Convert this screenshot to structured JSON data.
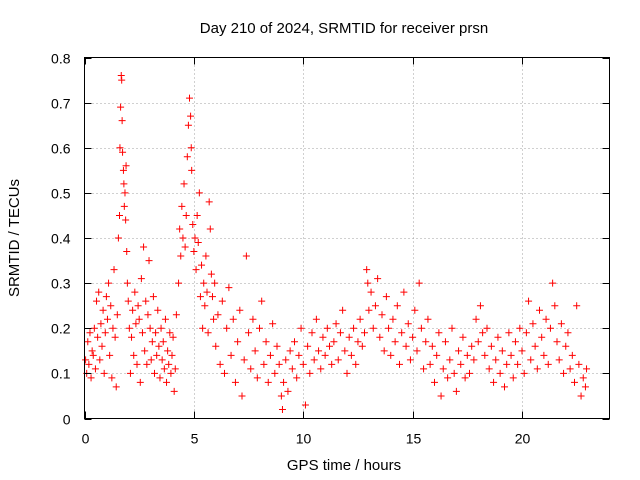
{
  "chart_data": {
    "type": "scatter",
    "title": "Day 210 of 2024, SRMTID for receiver prsn",
    "xlabel": "GPS time / hours",
    "ylabel": "SRMTID / TECUs",
    "xlim": [
      0,
      24
    ],
    "ylim": [
      0,
      0.8
    ],
    "xticks": [
      0,
      5,
      10,
      15,
      20
    ],
    "xtick_labels": [
      "0",
      "5",
      "10",
      "15",
      "20"
    ],
    "yticks": [
      0,
      0.1,
      0.2,
      0.3,
      0.4,
      0.5,
      0.6,
      0.7,
      0.8
    ],
    "ytick_labels": [
      "0",
      "0.1",
      "0.2",
      "0.3",
      "0.4",
      "0.5",
      "0.6",
      "0.7",
      "0.8"
    ],
    "grid": true,
    "marker": "+",
    "color": "#ff0000",
    "series": [
      {
        "name": "prsn",
        "points": [
          [
            0.05,
            0.13
          ],
          [
            0.1,
            0.1
          ],
          [
            0.15,
            0.17
          ],
          [
            0.2,
            0.12
          ],
          [
            0.25,
            0.19
          ],
          [
            0.3,
            0.09
          ],
          [
            0.35,
            0.15
          ],
          [
            0.4,
            0.14
          ],
          [
            0.45,
            0.2
          ],
          [
            0.5,
            0.11
          ],
          [
            0.55,
            0.26
          ],
          [
            0.6,
            0.18
          ],
          [
            0.65,
            0.28
          ],
          [
            0.7,
            0.13
          ],
          [
            0.75,
            0.21
          ],
          [
            0.8,
            0.16
          ],
          [
            0.85,
            0.24
          ],
          [
            0.9,
            0.1
          ],
          [
            0.95,
            0.19
          ],
          [
            1.0,
            0.27
          ],
          [
            1.05,
            0.22
          ],
          [
            1.1,
            0.3
          ],
          [
            1.15,
            0.14
          ],
          [
            1.2,
            0.25
          ],
          [
            1.25,
            0.09
          ],
          [
            1.3,
            0.2
          ],
          [
            1.35,
            0.33
          ],
          [
            1.4,
            0.18
          ],
          [
            1.45,
            0.07
          ],
          [
            1.5,
            0.23
          ],
          [
            1.55,
            0.4
          ],
          [
            1.6,
            0.45
          ],
          [
            1.62,
            0.6
          ],
          [
            1.65,
            0.69
          ],
          [
            1.68,
            0.76
          ],
          [
            1.7,
            0.75
          ],
          [
            1.72,
            0.66
          ],
          [
            1.74,
            0.59
          ],
          [
            1.78,
            0.55
          ],
          [
            1.8,
            0.52
          ],
          [
            1.82,
            0.47
          ],
          [
            1.85,
            0.5
          ],
          [
            1.88,
            0.44
          ],
          [
            1.9,
            0.56
          ],
          [
            1.93,
            0.37
          ],
          [
            1.96,
            0.3
          ],
          [
            2.0,
            0.26
          ],
          [
            2.05,
            0.2
          ],
          [
            2.1,
            0.1
          ],
          [
            2.15,
            0.18
          ],
          [
            2.2,
            0.24
          ],
          [
            2.25,
            0.14
          ],
          [
            2.3,
            0.28
          ],
          [
            2.35,
            0.21
          ],
          [
            2.4,
            0.12
          ],
          [
            2.45,
            0.25
          ],
          [
            2.5,
            0.22
          ],
          [
            2.55,
            0.08
          ],
          [
            2.6,
            0.31
          ],
          [
            2.65,
            0.19
          ],
          [
            2.7,
            0.38
          ],
          [
            2.75,
            0.15
          ],
          [
            2.8,
            0.26
          ],
          [
            2.85,
            0.12
          ],
          [
            2.9,
            0.23
          ],
          [
            2.95,
            0.35
          ],
          [
            3.0,
            0.2
          ],
          [
            3.05,
            0.13
          ],
          [
            3.1,
            0.17
          ],
          [
            3.15,
            0.27
          ],
          [
            3.2,
            0.1
          ],
          [
            3.25,
            0.19
          ],
          [
            3.3,
            0.14
          ],
          [
            3.35,
            0.24
          ],
          [
            3.4,
            0.16
          ],
          [
            3.45,
            0.09
          ],
          [
            3.5,
            0.2
          ],
          [
            3.55,
            0.13
          ],
          [
            3.6,
            0.17
          ],
          [
            3.65,
            0.11
          ],
          [
            3.7,
            0.22
          ],
          [
            3.75,
            0.08
          ],
          [
            3.8,
            0.15
          ],
          [
            3.85,
            0.12
          ],
          [
            3.9,
            0.19
          ],
          [
            3.95,
            0.1
          ],
          [
            4.0,
            0.14
          ],
          [
            4.05,
            0.18
          ],
          [
            4.1,
            0.06
          ],
          [
            4.15,
            0.11
          ],
          [
            4.2,
            0.23
          ],
          [
            4.3,
            0.3
          ],
          [
            4.35,
            0.42
          ],
          [
            4.4,
            0.36
          ],
          [
            4.45,
            0.47
          ],
          [
            4.5,
            0.4
          ],
          [
            4.55,
            0.52
          ],
          [
            4.6,
            0.38
          ],
          [
            4.65,
            0.45
          ],
          [
            4.7,
            0.58
          ],
          [
            4.75,
            0.65
          ],
          [
            4.8,
            0.71
          ],
          [
            4.85,
            0.67
          ],
          [
            4.88,
            0.6
          ],
          [
            4.9,
            0.55
          ],
          [
            4.95,
            0.43
          ],
          [
            5.0,
            0.37
          ],
          [
            5.05,
            0.4
          ],
          [
            5.1,
            0.33
          ],
          [
            5.15,
            0.45
          ],
          [
            5.2,
            0.39
          ],
          [
            5.25,
            0.5
          ],
          [
            5.3,
            0.27
          ],
          [
            5.35,
            0.34
          ],
          [
            5.4,
            0.2
          ],
          [
            5.45,
            0.3
          ],
          [
            5.5,
            0.25
          ],
          [
            5.55,
            0.36
          ],
          [
            5.6,
            0.28
          ],
          [
            5.65,
            0.19
          ],
          [
            5.7,
            0.48
          ],
          [
            5.75,
            0.42
          ],
          [
            5.8,
            0.32
          ],
          [
            5.85,
            0.27
          ],
          [
            5.9,
            0.22
          ],
          [
            5.95,
            0.3
          ],
          [
            6.0,
            0.16
          ],
          [
            6.1,
            0.23
          ],
          [
            6.2,
            0.12
          ],
          [
            6.3,
            0.26
          ],
          [
            6.4,
            0.1
          ],
          [
            6.5,
            0.2
          ],
          [
            6.6,
            0.29
          ],
          [
            6.7,
            0.14
          ],
          [
            6.8,
            0.22
          ],
          [
            6.9,
            0.08
          ],
          [
            7.0,
            0.17
          ],
          [
            7.1,
            0.24
          ],
          [
            7.2,
            0.05
          ],
          [
            7.3,
            0.13
          ],
          [
            7.4,
            0.36
          ],
          [
            7.5,
            0.19
          ],
          [
            7.6,
            0.11
          ],
          [
            7.7,
            0.22
          ],
          [
            7.8,
            0.15
          ],
          [
            7.9,
            0.09
          ],
          [
            8.0,
            0.2
          ],
          [
            8.1,
            0.26
          ],
          [
            8.2,
            0.12
          ],
          [
            8.3,
            0.17
          ],
          [
            8.4,
            0.08
          ],
          [
            8.5,
            0.14
          ],
          [
            8.6,
            0.21
          ],
          [
            8.7,
            0.1
          ],
          [
            8.8,
            0.16
          ],
          [
            8.9,
            0.12
          ],
          [
            9.0,
            0.05
          ],
          [
            9.05,
            0.02
          ],
          [
            9.1,
            0.08
          ],
          [
            9.2,
            0.13
          ],
          [
            9.3,
            0.06
          ],
          [
            9.4,
            0.15
          ],
          [
            9.5,
            0.11
          ],
          [
            9.6,
            0.17
          ],
          [
            9.7,
            0.09
          ],
          [
            9.8,
            0.14
          ],
          [
            9.9,
            0.2
          ],
          [
            10.0,
            0.12
          ],
          [
            10.1,
            0.03
          ],
          [
            10.2,
            0.16
          ],
          [
            10.3,
            0.1
          ],
          [
            10.4,
            0.19
          ],
          [
            10.5,
            0.13
          ],
          [
            10.6,
            0.22
          ],
          [
            10.7,
            0.15
          ],
          [
            10.8,
            0.11
          ],
          [
            10.9,
            0.18
          ],
          [
            11.0,
            0.14
          ],
          [
            11.1,
            0.2
          ],
          [
            11.2,
            0.16
          ],
          [
            11.3,
            0.12
          ],
          [
            11.4,
            0.17
          ],
          [
            11.5,
            0.21
          ],
          [
            11.6,
            0.13
          ],
          [
            11.7,
            0.19
          ],
          [
            11.8,
            0.24
          ],
          [
            11.9,
            0.15
          ],
          [
            12.0,
            0.1
          ],
          [
            12.1,
            0.18
          ],
          [
            12.2,
            0.14
          ],
          [
            12.3,
            0.2
          ],
          [
            12.4,
            0.12
          ],
          [
            12.5,
            0.17
          ],
          [
            12.6,
            0.22
          ],
          [
            12.7,
            0.16
          ],
          [
            12.8,
            0.19
          ],
          [
            12.9,
            0.33
          ],
          [
            12.95,
            0.3
          ],
          [
            13.0,
            0.24
          ],
          [
            13.1,
            0.28
          ],
          [
            13.2,
            0.2
          ],
          [
            13.3,
            0.25
          ],
          [
            13.4,
            0.31
          ],
          [
            13.5,
            0.18
          ],
          [
            13.6,
            0.23
          ],
          [
            13.7,
            0.15
          ],
          [
            13.8,
            0.27
          ],
          [
            13.9,
            0.2
          ],
          [
            14.0,
            0.14
          ],
          [
            14.1,
            0.22
          ],
          [
            14.2,
            0.17
          ],
          [
            14.3,
            0.25
          ],
          [
            14.4,
            0.12
          ],
          [
            14.5,
            0.19
          ],
          [
            14.6,
            0.28
          ],
          [
            14.7,
            0.16
          ],
          [
            14.8,
            0.21
          ],
          [
            14.9,
            0.13
          ],
          [
            15.0,
            0.18
          ],
          [
            15.1,
            0.24
          ],
          [
            15.2,
            0.15
          ],
          [
            15.3,
            0.3
          ],
          [
            15.4,
            0.2
          ],
          [
            15.5,
            0.11
          ],
          [
            15.6,
            0.17
          ],
          [
            15.7,
            0.22
          ],
          [
            15.8,
            0.12
          ],
          [
            15.9,
            0.16
          ],
          [
            16.0,
            0.08
          ],
          [
            16.1,
            0.14
          ],
          [
            16.2,
            0.19
          ],
          [
            16.3,
            0.05
          ],
          [
            16.4,
            0.11
          ],
          [
            16.5,
            0.17
          ],
          [
            16.6,
            0.09
          ],
          [
            16.7,
            0.13
          ],
          [
            16.8,
            0.2
          ],
          [
            16.9,
            0.1
          ],
          [
            17.0,
            0.06
          ],
          [
            17.1,
            0.15
          ],
          [
            17.2,
            0.12
          ],
          [
            17.3,
            0.18
          ],
          [
            17.4,
            0.09
          ],
          [
            17.5,
            0.14
          ],
          [
            17.6,
            0.1
          ],
          [
            17.7,
            0.16
          ],
          [
            17.8,
            0.13
          ],
          [
            17.9,
            0.22
          ],
          [
            18.0,
            0.17
          ],
          [
            18.1,
            0.25
          ],
          [
            18.2,
            0.19
          ],
          [
            18.3,
            0.14
          ],
          [
            18.4,
            0.2
          ],
          [
            18.5,
            0.11
          ],
          [
            18.6,
            0.16
          ],
          [
            18.7,
            0.08
          ],
          [
            18.8,
            0.13
          ],
          [
            18.9,
            0.18
          ],
          [
            19.0,
            0.1
          ],
          [
            19.1,
            0.15
          ],
          [
            19.2,
            0.07
          ],
          [
            19.3,
            0.12
          ],
          [
            19.4,
            0.19
          ],
          [
            19.5,
            0.14
          ],
          [
            19.6,
            0.09
          ],
          [
            19.7,
            0.17
          ],
          [
            19.8,
            0.12
          ],
          [
            19.9,
            0.2
          ],
          [
            20.0,
            0.15
          ],
          [
            20.1,
            0.1
          ],
          [
            20.2,
            0.19
          ],
          [
            20.3,
            0.26
          ],
          [
            20.4,
            0.13
          ],
          [
            20.5,
            0.21
          ],
          [
            20.6,
            0.16
          ],
          [
            20.7,
            0.11
          ],
          [
            20.8,
            0.24
          ],
          [
            20.9,
            0.18
          ],
          [
            21.0,
            0.14
          ],
          [
            21.1,
            0.22
          ],
          [
            21.2,
            0.12
          ],
          [
            21.3,
            0.2
          ],
          [
            21.4,
            0.3
          ],
          [
            21.5,
            0.25
          ],
          [
            21.6,
            0.17
          ],
          [
            21.7,
            0.13
          ],
          [
            21.8,
            0.21
          ],
          [
            21.9,
            0.1
          ],
          [
            22.0,
            0.16
          ],
          [
            22.1,
            0.19
          ],
          [
            22.2,
            0.11
          ],
          [
            22.3,
            0.14
          ],
          [
            22.4,
            0.08
          ],
          [
            22.5,
            0.25
          ],
          [
            22.6,
            0.12
          ],
          [
            22.7,
            0.05
          ],
          [
            22.8,
            0.09
          ],
          [
            22.9,
            0.07
          ],
          [
            22.95,
            0.11
          ]
        ]
      }
    ]
  }
}
